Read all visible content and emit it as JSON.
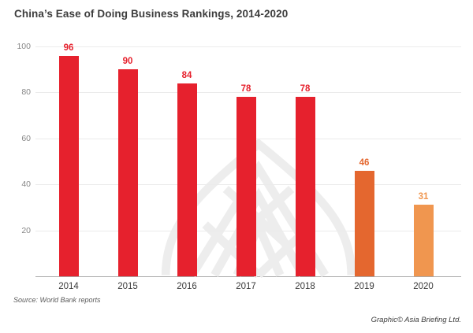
{
  "title": "China’s Ease of Doing Business Rankings, 2014-2020",
  "source_note": "Source: World Bank reports",
  "credit_note": "Graphic© Asia Briefing Ltd.",
  "colors": {
    "red_bar": "#E6212D",
    "orange_bar": "#E4672F",
    "light_orange_bar": "#F0964F",
    "title_text": "#3d3d3d",
    "axis_label_text": "#878787",
    "gridline": "#ebebeb",
    "axis_line": "#a9a9a9",
    "watermark": "#ededed"
  },
  "chart_data": {
    "type": "bar",
    "title": "China’s Ease of Doing Business Rankings, 2014-2020",
    "categories": [
      "2014",
      "2015",
      "2016",
      "2017",
      "2018",
      "2019",
      "2020"
    ],
    "values": [
      96,
      90,
      84,
      78,
      78,
      46,
      31
    ],
    "bar_colors": [
      "#E6212D",
      "#E6212D",
      "#E6212D",
      "#E6212D",
      "#E6212D",
      "#E4672F",
      "#F0964F"
    ],
    "xlabel": "",
    "ylabel": "",
    "y_ticks": [
      100,
      80,
      60,
      40,
      20
    ],
    "ylim": [
      0,
      100
    ],
    "grid": true,
    "legend": "none",
    "data_labels": true,
    "watermark": "asia-briefing-logo"
  }
}
